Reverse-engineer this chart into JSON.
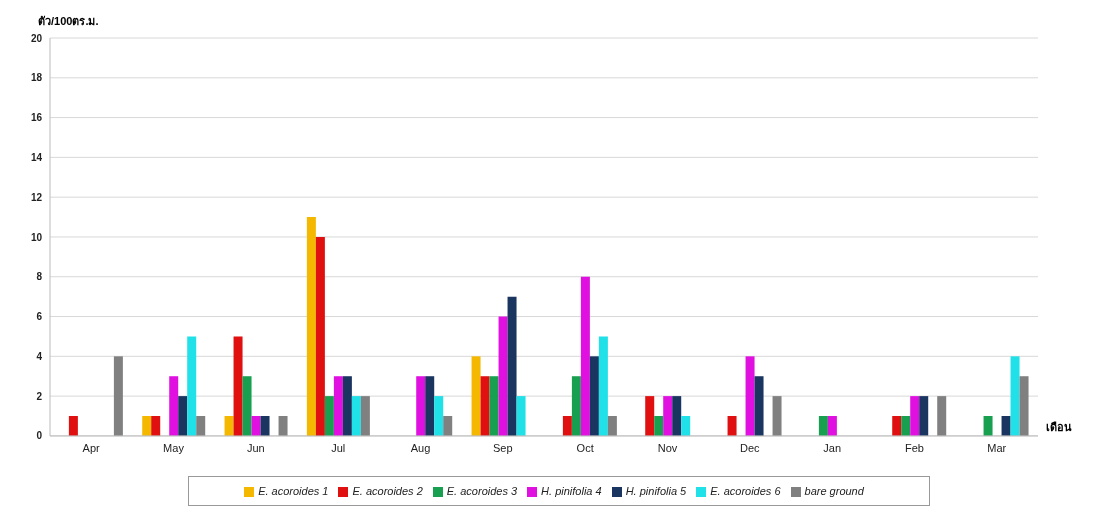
{
  "chart_data": {
    "type": "bar",
    "ylabel": "ตัว/100ตร.ม.",
    "xlabel": "เดือน",
    "categories": [
      "Apr",
      "May",
      "Jun",
      "Jul",
      "Aug",
      "Sep",
      "Oct",
      "Nov",
      "Dec",
      "Jan",
      "Feb",
      "Mar"
    ],
    "series": [
      {
        "name": "E. acoroides 1",
        "color": "#f5b800",
        "values": [
          0,
          1,
          1,
          11,
          0,
          4,
          0,
          0,
          0,
          0,
          0,
          0
        ]
      },
      {
        "name": "E. acoroides 2",
        "color": "#e01010",
        "values": [
          1,
          1,
          5,
          10,
          0,
          3,
          1,
          2,
          1,
          0,
          1,
          0
        ]
      },
      {
        "name": "E. acoroides 3",
        "color": "#18a050",
        "values": [
          0,
          0,
          3,
          2,
          0,
          3,
          3,
          1,
          0,
          1,
          1,
          1
        ]
      },
      {
        "name": "H. pinifolia 4",
        "color": "#e010e0",
        "values": [
          0,
          3,
          1,
          3,
          3,
          6,
          8,
          2,
          4,
          1,
          2,
          0
        ]
      },
      {
        "name": "H. pinifolia 5",
        "color": "#1a3560",
        "values": [
          0,
          2,
          1,
          3,
          3,
          7,
          4,
          2,
          3,
          0,
          2,
          1
        ]
      },
      {
        "name": "E. acoroides 6",
        "color": "#20e0e8",
        "values": [
          0,
          5,
          0,
          2,
          2,
          2,
          5,
          1,
          0,
          0,
          0,
          4
        ]
      },
      {
        "name": "bare ground",
        "color": "#808080",
        "values": [
          4,
          1,
          1,
          2,
          1,
          0,
          1,
          0,
          2,
          0,
          2,
          3
        ]
      }
    ],
    "ylim": [
      0,
      20
    ],
    "yticks": [
      0,
      2,
      4,
      6,
      8,
      10,
      12,
      14,
      16,
      18,
      20
    ],
    "grid": "y",
    "legend": "bottom"
  }
}
